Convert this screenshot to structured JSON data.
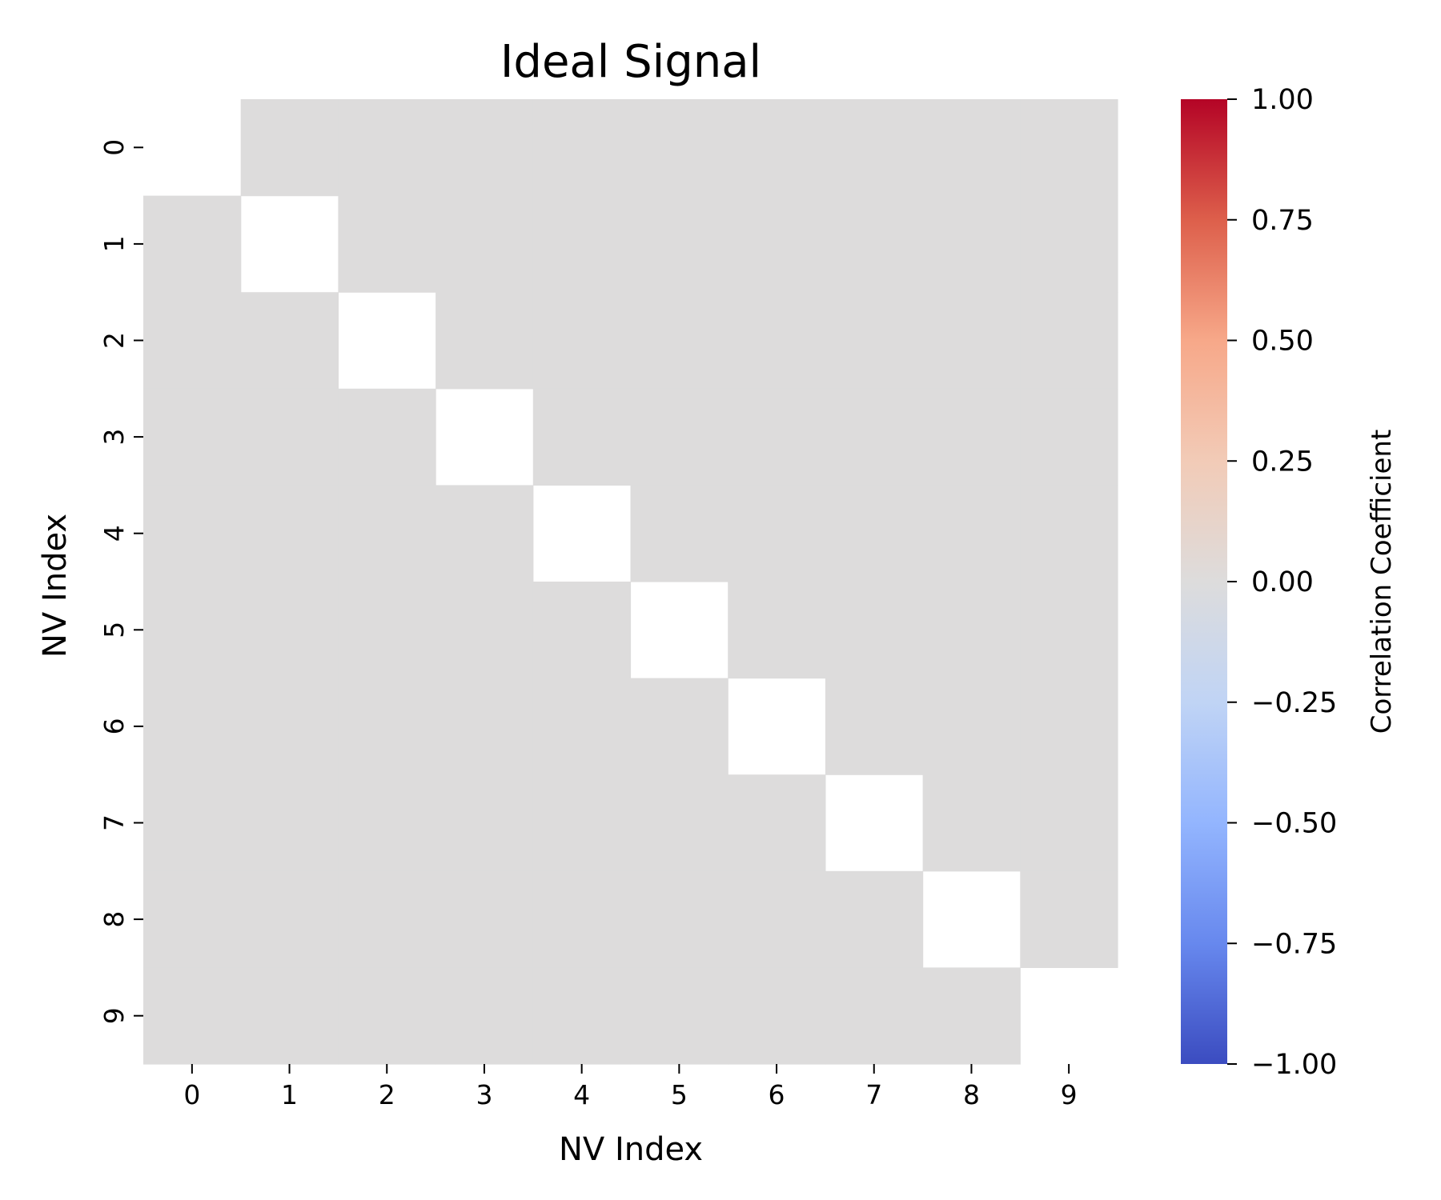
{
  "chart_data": {
    "type": "heatmap",
    "title": "Ideal Signal",
    "xlabel": "NV Index",
    "ylabel": "NV Index",
    "x_tick_labels": [
      "0",
      "1",
      "2",
      "3",
      "4",
      "5",
      "6",
      "7",
      "8",
      "9"
    ],
    "y_tick_labels": [
      "0",
      "1",
      "2",
      "3",
      "4",
      "5",
      "6",
      "7",
      "8",
      "9"
    ],
    "masked_value_note": "diagonal cells are blank (masked)",
    "matrix": [
      [
        null,
        0,
        0,
        0,
        0,
        0,
        0,
        0,
        0,
        0
      ],
      [
        0,
        null,
        0,
        0,
        0,
        0,
        0,
        0,
        0,
        0
      ],
      [
        0,
        0,
        null,
        0,
        0,
        0,
        0,
        0,
        0,
        0
      ],
      [
        0,
        0,
        0,
        null,
        0,
        0,
        0,
        0,
        0,
        0
      ],
      [
        0,
        0,
        0,
        0,
        null,
        0,
        0,
        0,
        0,
        0
      ],
      [
        0,
        0,
        0,
        0,
        0,
        null,
        0,
        0,
        0,
        0
      ],
      [
        0,
        0,
        0,
        0,
        0,
        0,
        null,
        0,
        0,
        0
      ],
      [
        0,
        0,
        0,
        0,
        0,
        0,
        0,
        null,
        0,
        0
      ],
      [
        0,
        0,
        0,
        0,
        0,
        0,
        0,
        0,
        null,
        0
      ],
      [
        0,
        0,
        0,
        0,
        0,
        0,
        0,
        0,
        0,
        null
      ]
    ],
    "colorbar": {
      "label": "Correlation Coefficient",
      "colormap": "coolwarm",
      "vmin": -1.0,
      "vmax": 1.0,
      "ticks": [
        1.0,
        0.75,
        0.5,
        0.25,
        0.0,
        -0.25,
        -0.5,
        -0.75,
        -1.0
      ],
      "tick_labels": [
        "1.00",
        "0.75",
        "0.50",
        "0.25",
        "0.00",
        "−0.25",
        "−0.50",
        "−0.75",
        "−1.00"
      ],
      "colors": [
        "#b40426",
        "#dd5f4b",
        "#f7a889",
        "#f2cbb7",
        "#dddcdc",
        "#c0d4f5",
        "#93b5fe",
        "#6788ee",
        "#3b4cc0"
      ]
    }
  }
}
